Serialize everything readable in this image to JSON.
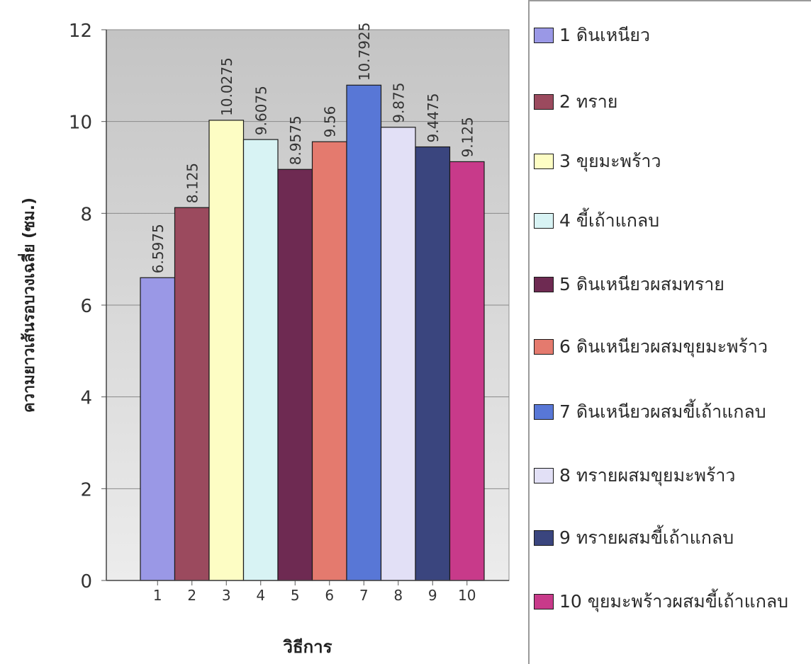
{
  "chart_data": {
    "type": "bar",
    "categories": [
      "1",
      "2",
      "3",
      "4",
      "5",
      "6",
      "7",
      "8",
      "9",
      "10"
    ],
    "values": [
      6.5975,
      8.125,
      10.0275,
      9.6075,
      8.9575,
      9.56,
      10.7925,
      9.875,
      9.4475,
      9.125
    ],
    "data_labels": [
      "6.5975",
      "8.125",
      "10.0275",
      "9.6075",
      "8.9575",
      "9.56",
      "10.7925",
      "9.875",
      "9.4475",
      "9.125"
    ],
    "colors": [
      "#9a98e6",
      "#9b4a5e",
      "#fdfdc4",
      "#d8f3f4",
      "#6e2a52",
      "#e47a6e",
      "#5877d6",
      "#e2e0f6",
      "#3a457e",
      "#c83a8a"
    ],
    "xlabel": "วิธีการ",
    "ylabel": "ความยาวเส้นรอบวงเฉลี่ย (ซม.)",
    "ylim": [
      0,
      12
    ],
    "yticks": [
      "0",
      "2",
      "4",
      "6",
      "8",
      "10",
      "12"
    ],
    "grid": true,
    "legend_position": "right",
    "legend": [
      "1 ดินเหนียว",
      "2 ทราย",
      "3 ขุยมะพร้าว",
      "4 ขี้เถ้าแกลบ",
      "5 ดินเหนียวผสมทราย",
      "6 ดินเหนียวผสมขุยมะพร้าว",
      "7 ดินเหนียวผสมขี้เถ้าแกลบ",
      "8 ทรายผสมขุยมะพร้าว",
      "9 ทรายผสมขี้เถ้าแกลบ",
      "10 ขุยมะพร้าวผสมขี้เถ้าแกลบ"
    ]
  }
}
